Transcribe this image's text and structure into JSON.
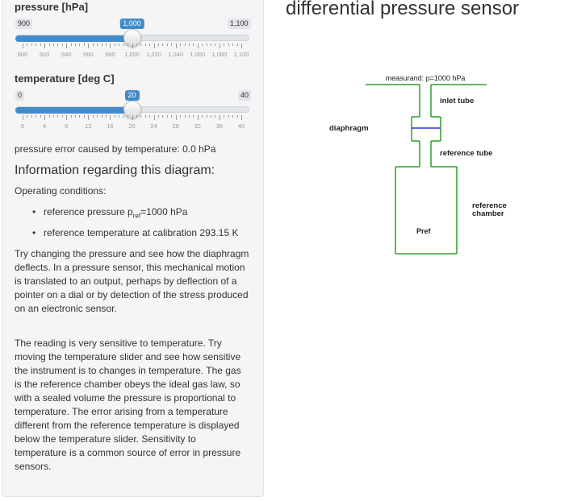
{
  "pressure_slider": {
    "label": "pressure [hPa]",
    "min_label": "900",
    "max_label": "1,100",
    "value_label": "1,000",
    "value_fraction": 0.5,
    "tick_labels": [
      "900",
      "920",
      "940",
      "960",
      "980",
      "1,000",
      "1,020",
      "1,040",
      "1,060",
      "1,080",
      "1,100"
    ]
  },
  "temperature_slider": {
    "label": "temperature [deg C]",
    "min_label": "0",
    "max_label": "40",
    "value_label": "20",
    "value_fraction": 0.5,
    "tick_labels": [
      "0",
      "4",
      "8",
      "12",
      "16",
      "20",
      "24",
      "28",
      "32",
      "36",
      "40"
    ]
  },
  "error_text": "pressure error caused by temperature: 0.0 hPa",
  "info": {
    "heading": "Information regarding this diagram:",
    "operating_conditions": "Operating conditions:",
    "bullet1_prefix": "reference pressure p",
    "bullet1_sub": "ref",
    "bullet1_suffix": "=1000 hPa",
    "bullet2": "reference temperature at calibration 293.15 K",
    "para1": "Try changing the pressure and see how the diaphragm deflects. In a pressure sensor, this mechanical motion is translated to an output, perhaps by deflection of a pointer on a dial or by detection of the stress produced on an electronic sensor.",
    "para2": "The reading is very sensitive to temperature. Try moving the temperature slider and see how sensitive the instrument is to changes in temperature. The gas is the reference chamber obeys the ideal gas law, so with a sealed volume the pressure is proportional to temperature. The error arising from a temperature different from the reference temperature is displayed below the temperature slider. Sensitivity to temperature is a common source of error in pressure sensors."
  },
  "title": "differential pressure sensor",
  "diagram": {
    "measurand": "measurand: p=1000 hPa",
    "inlet_tube": "inlet tube",
    "diaphragm": "diaphragm",
    "reference_tube": "reference tube",
    "reference_chamber_1": "reference",
    "reference_chamber_2": "chamber",
    "pref": "Pref",
    "colors": {
      "wall": "#2aa02a",
      "diaphragm": "#2b35d8",
      "text": "#222222"
    }
  },
  "colors": {
    "accent": "#428bca",
    "panel": "#f5f5f5"
  }
}
